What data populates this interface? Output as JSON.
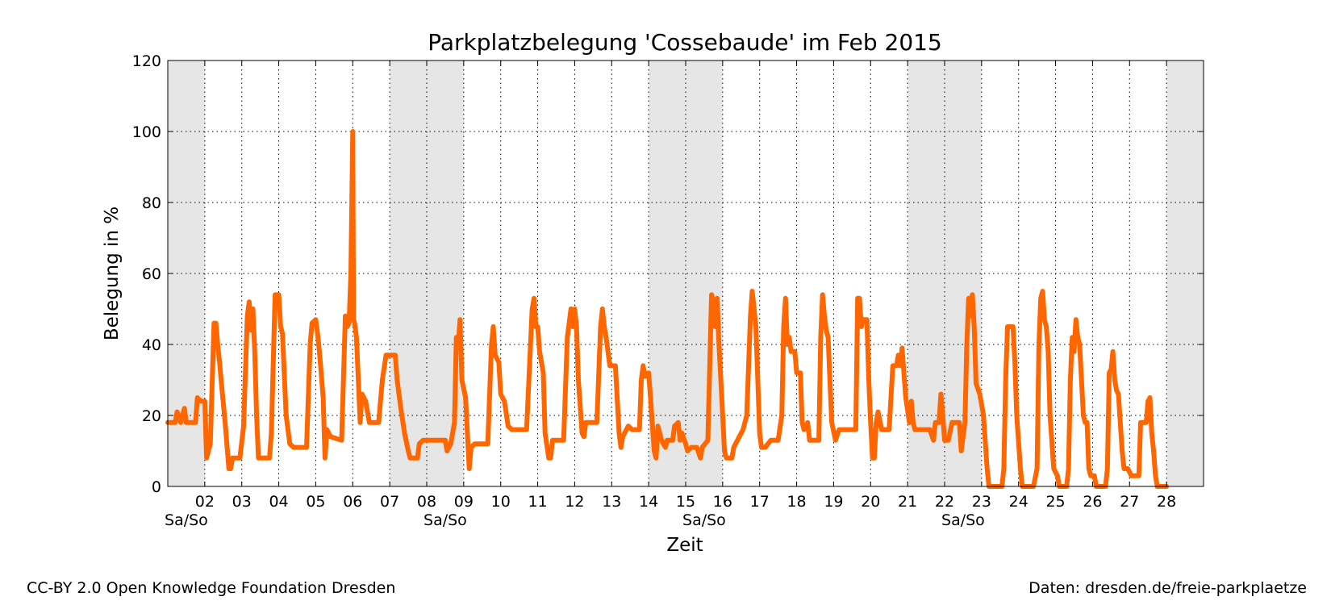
{
  "chart_data": {
    "type": "line",
    "title": "Parkplatzbelegung 'Cossebaude' im Feb 2015",
    "xlabel": "Zeit",
    "ylabel": "Belegung in %",
    "ylim": [
      0,
      120
    ],
    "xlim": [
      1,
      29
    ],
    "yticks": [
      0,
      20,
      40,
      60,
      80,
      100,
      120
    ],
    "ytick_labels": [
      "0",
      "20",
      "40",
      "60",
      "80",
      "100",
      "120"
    ],
    "xticks": [
      2,
      3,
      4,
      5,
      6,
      7,
      8,
      9,
      10,
      11,
      12,
      13,
      14,
      15,
      16,
      17,
      18,
      19,
      20,
      21,
      22,
      23,
      24,
      25,
      26,
      27,
      28
    ],
    "xtick_labels": [
      "02",
      "03",
      "04",
      "05",
      "06",
      "07",
      "08",
      "09",
      "10",
      "11",
      "12",
      "13",
      "14",
      "15",
      "16",
      "17",
      "18",
      "19",
      "20",
      "21",
      "22",
      "23",
      "24",
      "25",
      "26",
      "27",
      "28"
    ],
    "weekend_label": "Sa/So",
    "weekend_label_positions": [
      1.5,
      8.5,
      15.5,
      22.5
    ],
    "weekends": [
      [
        1,
        2
      ],
      [
        7,
        9
      ],
      [
        14,
        16
      ],
      [
        21,
        23
      ],
      [
        28,
        29
      ]
    ],
    "grid": true,
    "line_color": "#ff6600",
    "weekend_color": "#e6e6e6",
    "series": [
      {
        "points": [
          [
            1.0,
            18
          ],
          [
            1.2,
            18
          ],
          [
            1.25,
            21
          ],
          [
            1.35,
            18
          ],
          [
            1.45,
            22
          ],
          [
            1.5,
            18
          ],
          [
            1.6,
            18
          ],
          [
            1.75,
            18
          ],
          [
            1.8,
            25
          ],
          [
            1.9,
            24
          ],
          [
            2.0,
            24
          ],
          [
            2.05,
            8
          ],
          [
            2.15,
            12
          ],
          [
            2.25,
            46
          ],
          [
            2.3,
            46
          ],
          [
            2.35,
            40
          ],
          [
            2.4,
            35
          ],
          [
            2.45,
            29
          ],
          [
            2.55,
            18
          ],
          [
            2.65,
            5
          ],
          [
            2.7,
            5
          ],
          [
            2.75,
            8
          ],
          [
            2.95,
            8
          ],
          [
            3.05,
            17
          ],
          [
            3.15,
            48
          ],
          [
            3.2,
            52
          ],
          [
            3.25,
            44
          ],
          [
            3.3,
            50
          ],
          [
            3.35,
            38
          ],
          [
            3.4,
            20
          ],
          [
            3.45,
            8
          ],
          [
            3.6,
            8
          ],
          [
            3.75,
            8
          ],
          [
            3.8,
            15
          ],
          [
            3.9,
            54
          ],
          [
            4.0,
            54
          ],
          [
            4.05,
            45
          ],
          [
            4.1,
            43
          ],
          [
            4.2,
            20
          ],
          [
            4.3,
            12
          ],
          [
            4.4,
            11
          ],
          [
            4.75,
            11
          ],
          [
            4.85,
            40
          ],
          [
            4.9,
            46
          ],
          [
            5.0,
            47
          ],
          [
            5.05,
            43
          ],
          [
            5.1,
            38
          ],
          [
            5.2,
            25
          ],
          [
            5.25,
            8
          ],
          [
            5.3,
            16
          ],
          [
            5.4,
            14
          ],
          [
            5.7,
            13
          ],
          [
            5.8,
            48
          ],
          [
            5.85,
            45
          ],
          [
            5.9,
            46
          ],
          [
            5.95,
            60
          ],
          [
            6.0,
            100
          ],
          [
            6.02,
            47
          ],
          [
            6.05,
            46
          ],
          [
            6.1,
            42
          ],
          [
            6.2,
            18
          ],
          [
            6.25,
            26
          ],
          [
            6.35,
            24
          ],
          [
            6.45,
            18
          ],
          [
            6.7,
            18
          ],
          [
            6.8,
            30
          ],
          [
            6.9,
            37
          ],
          [
            7.15,
            37
          ],
          [
            7.2,
            30
          ],
          [
            7.3,
            22
          ],
          [
            7.4,
            15
          ],
          [
            7.5,
            10
          ],
          [
            7.55,
            8
          ],
          [
            7.75,
            8
          ],
          [
            7.8,
            12
          ],
          [
            7.9,
            13
          ],
          [
            8.5,
            13
          ],
          [
            8.55,
            10
          ],
          [
            8.65,
            12
          ],
          [
            8.75,
            18
          ],
          [
            8.8,
            42
          ],
          [
            8.85,
            40
          ],
          [
            8.9,
            47
          ],
          [
            8.95,
            30
          ],
          [
            9.05,
            25
          ],
          [
            9.1,
            15
          ],
          [
            9.15,
            5
          ],
          [
            9.2,
            11
          ],
          [
            9.3,
            12
          ],
          [
            9.65,
            12
          ],
          [
            9.75,
            40
          ],
          [
            9.8,
            45
          ],
          [
            9.85,
            37
          ],
          [
            9.95,
            35
          ],
          [
            10.0,
            26
          ],
          [
            10.1,
            24
          ],
          [
            10.2,
            17
          ],
          [
            10.3,
            16
          ],
          [
            10.7,
            16
          ],
          [
            10.85,
            50
          ],
          [
            10.9,
            53
          ],
          [
            10.95,
            45
          ],
          [
            11.0,
            45
          ],
          [
            11.05,
            38
          ],
          [
            11.15,
            32
          ],
          [
            11.2,
            15
          ],
          [
            11.3,
            8
          ],
          [
            11.35,
            8
          ],
          [
            11.4,
            13
          ],
          [
            11.7,
            13
          ],
          [
            11.8,
            42
          ],
          [
            11.9,
            50
          ],
          [
            11.95,
            45
          ],
          [
            12.0,
            50
          ],
          [
            12.05,
            45
          ],
          [
            12.1,
            30
          ],
          [
            12.2,
            15
          ],
          [
            12.25,
            14
          ],
          [
            12.3,
            18
          ],
          [
            12.6,
            18
          ],
          [
            12.7,
            45
          ],
          [
            12.75,
            50
          ],
          [
            12.8,
            45
          ],
          [
            12.85,
            42
          ],
          [
            12.95,
            34
          ],
          [
            13.1,
            34
          ],
          [
            13.2,
            15
          ],
          [
            13.25,
            11
          ],
          [
            13.3,
            14
          ],
          [
            13.45,
            17
          ],
          [
            13.55,
            16
          ],
          [
            13.75,
            16
          ],
          [
            13.8,
            30
          ],
          [
            13.85,
            34
          ],
          [
            13.9,
            31
          ],
          [
            14.0,
            32
          ],
          [
            14.05,
            25
          ],
          [
            14.15,
            10
          ],
          [
            14.2,
            8
          ],
          [
            14.25,
            17
          ],
          [
            14.35,
            13
          ],
          [
            14.45,
            11
          ],
          [
            14.5,
            13
          ],
          [
            14.65,
            13
          ],
          [
            14.7,
            17
          ],
          [
            14.8,
            18
          ],
          [
            14.85,
            13
          ],
          [
            14.9,
            15
          ],
          [
            15.0,
            12
          ],
          [
            15.05,
            10
          ],
          [
            15.15,
            11
          ],
          [
            15.3,
            11
          ],
          [
            15.4,
            8
          ],
          [
            15.45,
            11
          ],
          [
            15.6,
            13
          ],
          [
            15.7,
            54
          ],
          [
            15.75,
            52
          ],
          [
            15.8,
            45
          ],
          [
            15.85,
            53
          ],
          [
            15.9,
            40
          ],
          [
            15.95,
            30
          ],
          [
            16.0,
            20
          ],
          [
            16.05,
            10
          ],
          [
            16.1,
            8
          ],
          [
            16.25,
            8
          ],
          [
            16.3,
            11
          ],
          [
            16.4,
            13
          ],
          [
            16.55,
            16
          ],
          [
            16.65,
            20
          ],
          [
            16.75,
            48
          ],
          [
            16.8,
            55
          ],
          [
            16.85,
            50
          ],
          [
            16.9,
            45
          ],
          [
            16.95,
            30
          ],
          [
            17.0,
            15
          ],
          [
            17.05,
            11
          ],
          [
            17.15,
            11
          ],
          [
            17.3,
            13
          ],
          [
            17.5,
            13
          ],
          [
            17.6,
            20
          ],
          [
            17.65,
            45
          ],
          [
            17.7,
            53
          ],
          [
            17.75,
            40
          ],
          [
            17.8,
            42
          ],
          [
            17.85,
            38
          ],
          [
            17.95,
            38
          ],
          [
            18.0,
            32
          ],
          [
            18.1,
            32
          ],
          [
            18.15,
            18
          ],
          [
            18.2,
            16
          ],
          [
            18.3,
            18
          ],
          [
            18.35,
            13
          ],
          [
            18.45,
            13
          ],
          [
            18.6,
            13
          ],
          [
            18.65,
            42
          ],
          [
            18.7,
            54
          ],
          [
            18.75,
            48
          ],
          [
            18.8,
            44
          ],
          [
            18.85,
            42
          ],
          [
            18.9,
            30
          ],
          [
            18.95,
            18
          ],
          [
            19.05,
            13
          ],
          [
            19.15,
            16
          ],
          [
            19.6,
            16
          ],
          [
            19.65,
            53
          ],
          [
            19.7,
            53
          ],
          [
            19.75,
            45
          ],
          [
            19.8,
            47
          ],
          [
            19.9,
            47
          ],
          [
            19.95,
            30
          ],
          [
            20.0,
            18
          ],
          [
            20.05,
            8
          ],
          [
            20.1,
            8
          ],
          [
            20.15,
            18
          ],
          [
            20.2,
            21
          ],
          [
            20.3,
            16
          ],
          [
            20.5,
            16
          ],
          [
            20.6,
            34
          ],
          [
            20.7,
            34
          ],
          [
            20.75,
            37
          ],
          [
            20.8,
            34
          ],
          [
            20.85,
            39
          ],
          [
            20.95,
            25
          ],
          [
            21.05,
            18
          ],
          [
            21.1,
            24
          ],
          [
            21.15,
            18
          ],
          [
            21.2,
            16
          ],
          [
            21.6,
            16
          ],
          [
            21.7,
            13
          ],
          [
            21.75,
            18
          ],
          [
            21.85,
            18
          ],
          [
            21.9,
            26
          ],
          [
            21.95,
            20
          ],
          [
            22.0,
            13
          ],
          [
            22.1,
            13
          ],
          [
            22.2,
            18
          ],
          [
            22.4,
            18
          ],
          [
            22.45,
            10
          ],
          [
            22.55,
            18
          ],
          [
            22.6,
            40
          ],
          [
            22.65,
            53
          ],
          [
            22.7,
            48
          ],
          [
            22.75,
            54
          ],
          [
            22.8,
            45
          ],
          [
            22.85,
            29
          ],
          [
            22.95,
            26
          ],
          [
            23.05,
            20
          ],
          [
            23.15,
            5
          ],
          [
            23.2,
            0
          ],
          [
            23.55,
            0
          ],
          [
            23.6,
            5
          ],
          [
            23.65,
            30
          ],
          [
            23.7,
            45
          ],
          [
            23.85,
            45
          ],
          [
            23.9,
            35
          ],
          [
            23.95,
            20
          ],
          [
            24.05,
            5
          ],
          [
            24.1,
            0
          ],
          [
            24.4,
            0
          ],
          [
            24.5,
            5
          ],
          [
            24.55,
            40
          ],
          [
            24.6,
            53
          ],
          [
            24.65,
            55
          ],
          [
            24.7,
            47
          ],
          [
            24.75,
            45
          ],
          [
            24.8,
            38
          ],
          [
            24.85,
            20
          ],
          [
            24.95,
            5
          ],
          [
            25.05,
            3
          ],
          [
            25.1,
            0
          ],
          [
            25.3,
            0
          ],
          [
            25.35,
            5
          ],
          [
            25.4,
            30
          ],
          [
            25.45,
            42
          ],
          [
            25.5,
            38
          ],
          [
            25.55,
            47
          ],
          [
            25.6,
            42
          ],
          [
            25.65,
            40
          ],
          [
            25.7,
            30
          ],
          [
            25.75,
            20
          ],
          [
            25.8,
            18
          ],
          [
            25.85,
            18
          ],
          [
            25.9,
            5
          ],
          [
            25.95,
            3
          ],
          [
            26.05,
            3
          ],
          [
            26.1,
            0
          ],
          [
            26.35,
            0
          ],
          [
            26.4,
            5
          ],
          [
            26.45,
            32
          ],
          [
            26.5,
            33
          ],
          [
            26.55,
            38
          ],
          [
            26.6,
            30
          ],
          [
            26.65,
            27
          ],
          [
            26.7,
            26
          ],
          [
            26.75,
            18
          ],
          [
            26.8,
            10
          ],
          [
            26.85,
            5
          ],
          [
            26.95,
            5
          ],
          [
            27.05,
            3
          ],
          [
            27.25,
            3
          ],
          [
            27.3,
            18
          ],
          [
            27.45,
            18
          ],
          [
            27.5,
            24
          ],
          [
            27.55,
            25
          ],
          [
            27.6,
            15
          ],
          [
            27.65,
            10
          ],
          [
            27.7,
            3
          ],
          [
            27.75,
            0
          ],
          [
            28.0,
            0
          ]
        ]
      }
    ]
  },
  "footer": {
    "license": "CC-BY 2.0 Open Knowledge Foundation Dresden",
    "source": "Daten: dresden.de/freie-parkplaetze"
  }
}
